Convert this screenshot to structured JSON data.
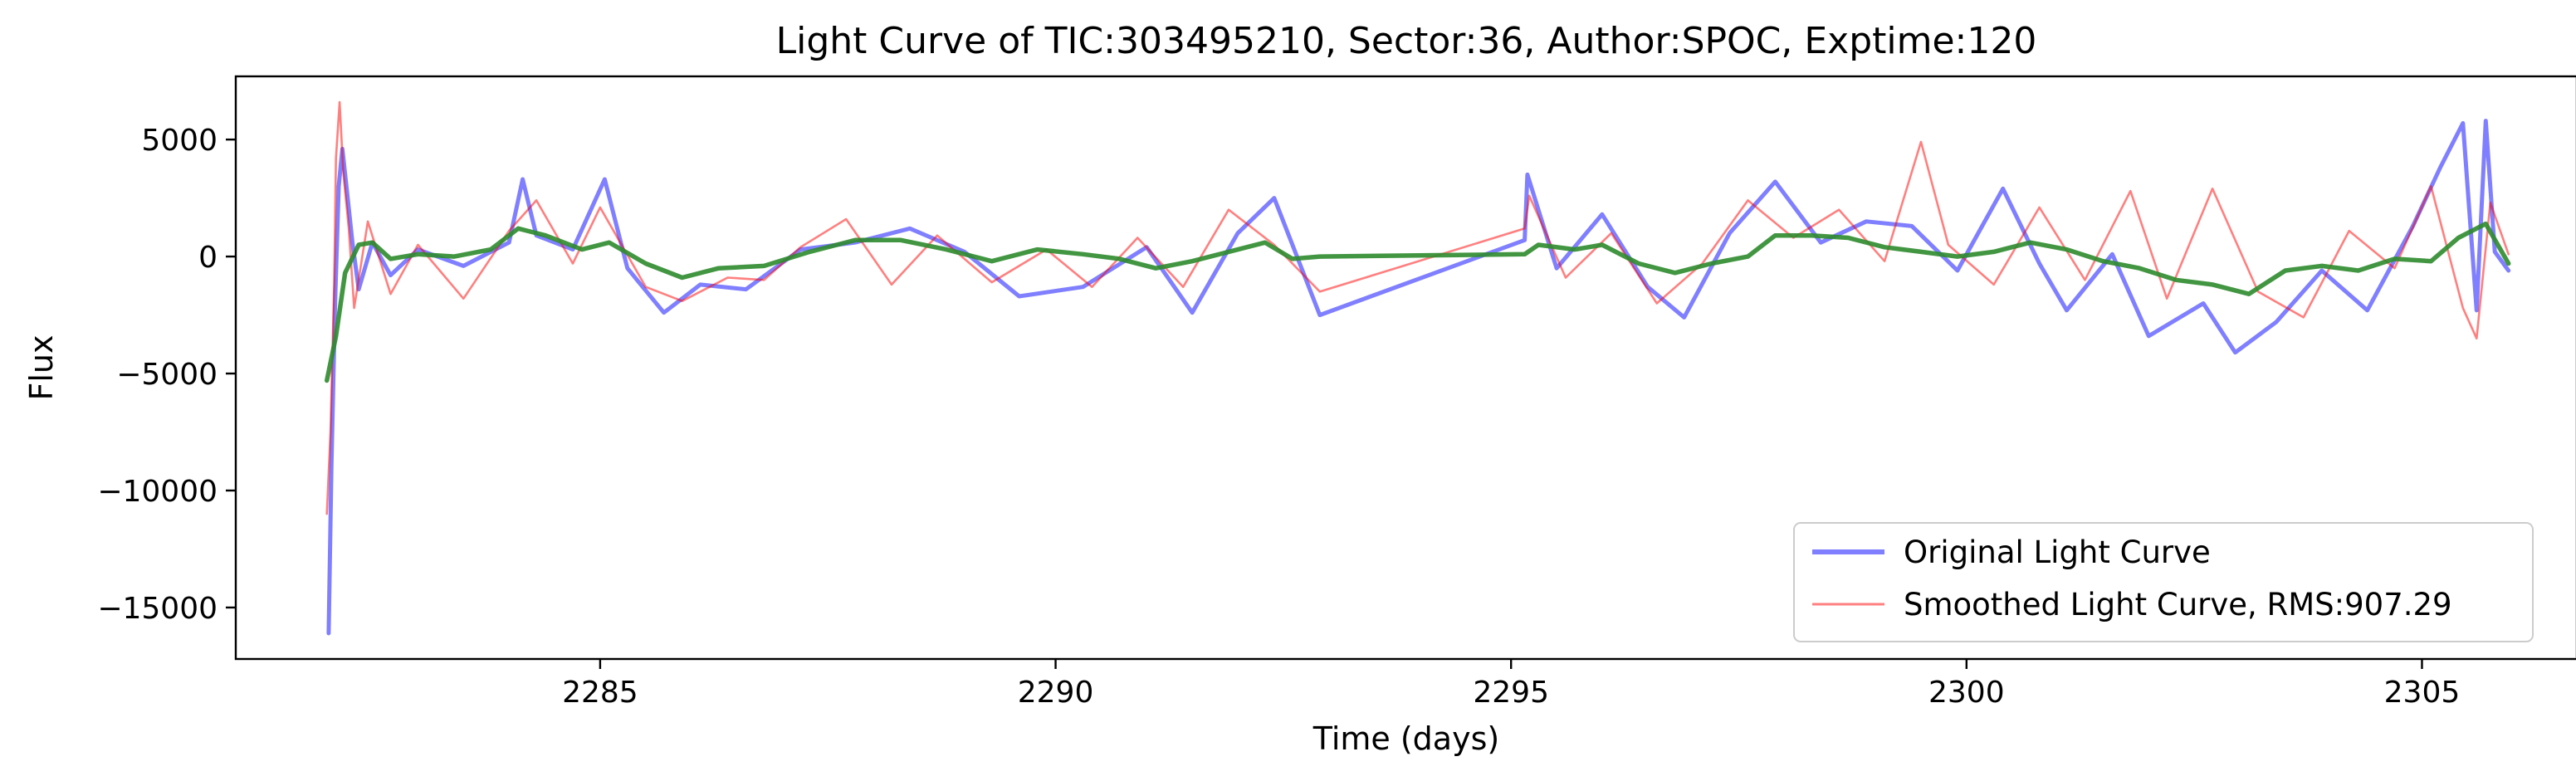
{
  "chart_data": {
    "type": "line",
    "title": "Light Curve of TIC:303495210, Sector:36, Author:SPOC, Exptime:120",
    "xlabel": "Time (days)",
    "ylabel": "Flux",
    "xlim": [
      2281.0,
      2306.7
    ],
    "ylim": [
      -17200,
      7700
    ],
    "xticks": [
      2285,
      2290,
      2295,
      2300,
      2305
    ],
    "yticks": [
      5000,
      0,
      -5000,
      -10000,
      -15000
    ],
    "xtick_labels": [
      "2285",
      "2290",
      "2295",
      "2300",
      "2305"
    ],
    "ytick_labels": [
      "5000",
      "0",
      "−5000",
      "−10000",
      "−15000"
    ],
    "grid": false,
    "legend": "lower-right",
    "gap": [
      2292.9,
      2295.15
    ],
    "series": [
      {
        "name": "Original Light Curve",
        "color": "#0000ff",
        "opacity": 0.5,
        "points": [
          [
            2282.02,
            -16100
          ],
          [
            2282.05,
            -9000
          ],
          [
            2282.09,
            -2000
          ],
          [
            2282.13,
            3000
          ],
          [
            2282.17,
            4600
          ],
          [
            2282.22,
            2800
          ],
          [
            2282.28,
            600
          ],
          [
            2282.35,
            -1400
          ],
          [
            2282.5,
            600
          ],
          [
            2282.7,
            -800
          ],
          [
            2283.0,
            300
          ],
          [
            2283.5,
            -400
          ],
          [
            2284.0,
            600
          ],
          [
            2284.15,
            3300
          ],
          [
            2284.3,
            900
          ],
          [
            2284.7,
            300
          ],
          [
            2285.05,
            3300
          ],
          [
            2285.3,
            -500
          ],
          [
            2285.7,
            -2400
          ],
          [
            2286.1,
            -1200
          ],
          [
            2286.6,
            -1400
          ],
          [
            2287.2,
            300
          ],
          [
            2287.8,
            600
          ],
          [
            2288.4,
            1200
          ],
          [
            2289.0,
            200
          ],
          [
            2289.6,
            -1700
          ],
          [
            2290.3,
            -1300
          ],
          [
            2291.0,
            400
          ],
          [
            2291.5,
            -2400
          ],
          [
            2292.0,
            1000
          ],
          [
            2292.4,
            2500
          ],
          [
            2292.9,
            -2500
          ],
          [
            2295.15,
            700
          ],
          [
            2295.18,
            3500
          ],
          [
            2295.5,
            -500
          ],
          [
            2296.0,
            1800
          ],
          [
            2296.5,
            -1300
          ],
          [
            2296.9,
            -2600
          ],
          [
            2297.4,
            1000
          ],
          [
            2297.9,
            3200
          ],
          [
            2298.4,
            600
          ],
          [
            2298.9,
            1500
          ],
          [
            2299.4,
            1300
          ],
          [
            2299.9,
            -600
          ],
          [
            2300.4,
            2900
          ],
          [
            2300.8,
            -300
          ],
          [
            2301.1,
            -2300
          ],
          [
            2301.6,
            100
          ],
          [
            2302.0,
            -3400
          ],
          [
            2302.6,
            -2000
          ],
          [
            2302.95,
            -4100
          ],
          [
            2303.4,
            -2800
          ],
          [
            2303.9,
            -600
          ],
          [
            2304.4,
            -2300
          ],
          [
            2304.9,
            1300
          ],
          [
            2305.2,
            3800
          ],
          [
            2305.45,
            5700
          ],
          [
            2305.6,
            -2300
          ],
          [
            2305.7,
            5800
          ],
          [
            2305.8,
            200
          ],
          [
            2305.95,
            -600
          ]
        ]
      },
      {
        "name": "Smoothed Light Curve, RMS:907.29",
        "color": "#ff0000",
        "opacity": 0.5,
        "points": [
          [
            2282.0,
            -11000
          ],
          [
            2282.04,
            -7500
          ],
          [
            2282.08,
            -1200
          ],
          [
            2282.1,
            4200
          ],
          [
            2282.14,
            6600
          ],
          [
            2282.18,
            3600
          ],
          [
            2282.24,
            1200
          ],
          [
            2282.3,
            -2200
          ],
          [
            2282.45,
            1500
          ],
          [
            2282.7,
            -1600
          ],
          [
            2283.0,
            500
          ],
          [
            2283.5,
            -1800
          ],
          [
            2284.0,
            1100
          ],
          [
            2284.3,
            2400
          ],
          [
            2284.7,
            -300
          ],
          [
            2285.0,
            2100
          ],
          [
            2285.5,
            -1300
          ],
          [
            2285.9,
            -1900
          ],
          [
            2286.4,
            -900
          ],
          [
            2286.8,
            -1000
          ],
          [
            2287.2,
            400
          ],
          [
            2287.7,
            1600
          ],
          [
            2288.2,
            -1200
          ],
          [
            2288.7,
            900
          ],
          [
            2289.3,
            -1100
          ],
          [
            2289.9,
            300
          ],
          [
            2290.4,
            -1300
          ],
          [
            2290.9,
            800
          ],
          [
            2291.4,
            -1300
          ],
          [
            2291.9,
            2000
          ],
          [
            2292.4,
            500
          ],
          [
            2292.9,
            -1500
          ],
          [
            2295.15,
            1200
          ],
          [
            2295.2,
            2600
          ],
          [
            2295.6,
            -900
          ],
          [
            2296.1,
            1000
          ],
          [
            2296.6,
            -2000
          ],
          [
            2297.1,
            -300
          ],
          [
            2297.6,
            2400
          ],
          [
            2298.1,
            800
          ],
          [
            2298.6,
            2000
          ],
          [
            2299.1,
            -200
          ],
          [
            2299.5,
            4900
          ],
          [
            2299.8,
            500
          ],
          [
            2300.3,
            -1200
          ],
          [
            2300.8,
            2100
          ],
          [
            2301.3,
            -1000
          ],
          [
            2301.8,
            2800
          ],
          [
            2302.2,
            -1800
          ],
          [
            2302.7,
            2900
          ],
          [
            2303.2,
            -1500
          ],
          [
            2303.7,
            -2600
          ],
          [
            2304.2,
            1100
          ],
          [
            2304.7,
            -500
          ],
          [
            2305.1,
            3000
          ],
          [
            2305.45,
            -2200
          ],
          [
            2305.6,
            -3500
          ],
          [
            2305.75,
            2300
          ],
          [
            2305.95,
            100
          ]
        ]
      },
      {
        "name": "",
        "color": "#2e8b2e",
        "opacity": 0.9,
        "points": [
          [
            2282.0,
            -5300
          ],
          [
            2282.1,
            -3400
          ],
          [
            2282.2,
            -700
          ],
          [
            2282.35,
            500
          ],
          [
            2282.5,
            600
          ],
          [
            2282.7,
            -100
          ],
          [
            2283.0,
            100
          ],
          [
            2283.4,
            0
          ],
          [
            2283.8,
            300
          ],
          [
            2284.1,
            1200
          ],
          [
            2284.4,
            900
          ],
          [
            2284.8,
            300
          ],
          [
            2285.1,
            600
          ],
          [
            2285.5,
            -300
          ],
          [
            2285.9,
            -900
          ],
          [
            2286.3,
            -500
          ],
          [
            2286.8,
            -400
          ],
          [
            2287.3,
            200
          ],
          [
            2287.8,
            700
          ],
          [
            2288.3,
            700
          ],
          [
            2288.8,
            300
          ],
          [
            2289.3,
            -200
          ],
          [
            2289.8,
            300
          ],
          [
            2290.3,
            100
          ],
          [
            2290.7,
            -100
          ],
          [
            2291.1,
            -500
          ],
          [
            2291.5,
            -200
          ],
          [
            2291.9,
            200
          ],
          [
            2292.3,
            600
          ],
          [
            2292.6,
            -100
          ],
          [
            2292.9,
            0
          ],
          [
            2295.15,
            100
          ],
          [
            2295.3,
            500
          ],
          [
            2295.7,
            300
          ],
          [
            2296.0,
            500
          ],
          [
            2296.4,
            -300
          ],
          [
            2296.8,
            -700
          ],
          [
            2297.2,
            -300
          ],
          [
            2297.6,
            0
          ],
          [
            2297.9,
            900
          ],
          [
            2298.3,
            900
          ],
          [
            2298.7,
            800
          ],
          [
            2299.1,
            400
          ],
          [
            2299.5,
            200
          ],
          [
            2299.9,
            0
          ],
          [
            2300.3,
            200
          ],
          [
            2300.7,
            600
          ],
          [
            2301.1,
            300
          ],
          [
            2301.5,
            -200
          ],
          [
            2301.9,
            -500
          ],
          [
            2302.3,
            -1000
          ],
          [
            2302.7,
            -1200
          ],
          [
            2303.1,
            -1600
          ],
          [
            2303.5,
            -600
          ],
          [
            2303.9,
            -400
          ],
          [
            2304.3,
            -600
          ],
          [
            2304.7,
            -100
          ],
          [
            2305.1,
            -200
          ],
          [
            2305.4,
            800
          ],
          [
            2305.7,
            1400
          ],
          [
            2305.95,
            -300
          ]
        ]
      }
    ],
    "legend_entries": [
      {
        "label": "Original Light Curve",
        "color": "#0000ff",
        "opacity": 0.5,
        "weight": "thick"
      },
      {
        "label": "Smoothed Light Curve, RMS:907.29",
        "color": "#ff0000",
        "opacity": 0.5,
        "weight": "thin"
      }
    ]
  }
}
